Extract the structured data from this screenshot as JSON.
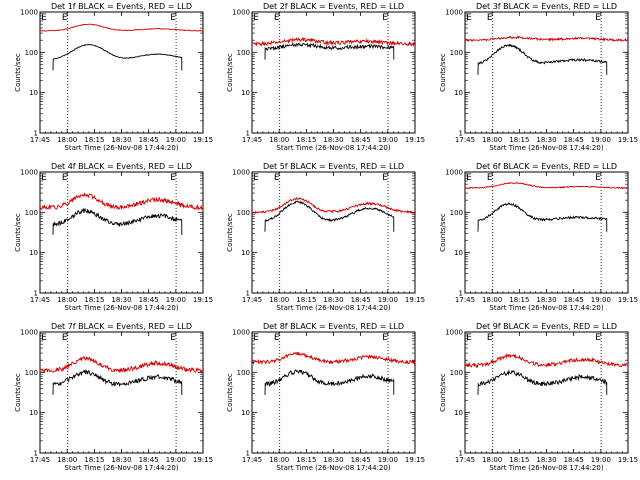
{
  "chart_data": [
    {
      "type": "line",
      "title": "Det 1f BLACK = Events, RED = LLD",
      "xlabel": "Start Time (26-Nov-08 17:44:20)",
      "ylabel": "Counts/sec",
      "yscale": "log",
      "ylim": [
        1,
        1000
      ],
      "x_ticks": [
        "17:45",
        "18:00",
        "18:15",
        "18:30",
        "18:45",
        "19:00",
        "19:15"
      ],
      "y_ticks": [
        "1",
        "10",
        "100",
        "1000"
      ],
      "marker_labels": [
        "E",
        "E"
      ],
      "series": [
        {
          "name": "LLD",
          "color": "#d40000",
          "profile": "flat",
          "base": 340,
          "amp": 170,
          "noise": 0.02,
          "t_start": 0.0,
          "t_end": 1.0
        },
        {
          "name": "Events",
          "color": "#000000",
          "profile": "flat",
          "base": 65,
          "amp": 100,
          "noise": 0.02,
          "t_start": 0.08,
          "t_end": 0.87
        }
      ]
    },
    {
      "type": "line",
      "title": "Det 2f BLACK = Events, RED = LLD",
      "xlabel": "Start Time (26-Nov-08 17:44:20)",
      "ylabel": "Counts/sec",
      "yscale": "log",
      "ylim": [
        1,
        1000
      ],
      "x_ticks": [
        "17:45",
        "18:00",
        "18:15",
        "18:30",
        "18:45",
        "19:00",
        "19:15"
      ],
      "y_ticks": [
        "1",
        "10",
        "100",
        "1000"
      ],
      "marker_labels": [
        "E",
        "E"
      ],
      "series": [
        {
          "name": "LLD",
          "color": "#d40000",
          "profile": "noisy",
          "base": 160,
          "amp": 80,
          "noise": 0.1,
          "t_start": 0.0,
          "t_end": 1.0
        },
        {
          "name": "Events",
          "color": "#000000",
          "profile": "noisy",
          "base": 120,
          "amp": 60,
          "noise": 0.1,
          "t_start": 0.08,
          "t_end": 0.87
        }
      ]
    },
    {
      "type": "line",
      "title": "Det 3f BLACK = Events, RED = LLD",
      "xlabel": "Start Time (26-Nov-08 17:44:20)",
      "ylabel": "Counts/sec",
      "yscale": "log",
      "ylim": [
        1,
        1000
      ],
      "x_ticks": [
        "17:45",
        "18:00",
        "18:15",
        "18:30",
        "18:45",
        "19:00",
        "19:15"
      ],
      "y_ticks": [
        "1",
        "10",
        "100",
        "1000"
      ],
      "marker_labels": [
        "E",
        "E"
      ],
      "series": [
        {
          "name": "LLD",
          "color": "#d40000",
          "profile": "noisy",
          "base": 200,
          "amp": 60,
          "noise": 0.06,
          "t_start": 0.0,
          "t_end": 1.0
        },
        {
          "name": "Events",
          "color": "#000000",
          "profile": "decay",
          "base": 50,
          "amp": 100,
          "noise": 0.06,
          "t_start": 0.08,
          "t_end": 0.87
        }
      ]
    },
    {
      "type": "line",
      "title": "Det 4f BLACK = Events, RED = LLD",
      "xlabel": "Start Time (26-Nov-08 17:44:20)",
      "ylabel": "Counts/sec",
      "yscale": "log",
      "ylim": [
        1,
        1000
      ],
      "x_ticks": [
        "17:45",
        "18:00",
        "18:15",
        "18:30",
        "18:45",
        "19:00",
        "19:15"
      ],
      "y_ticks": [
        "1",
        "10",
        "100",
        "1000"
      ],
      "marker_labels": [
        "E",
        "E"
      ],
      "series": [
        {
          "name": "LLD",
          "color": "#d40000",
          "profile": "double",
          "base": 130,
          "amp": 140,
          "noise": 0.12,
          "t_start": 0.0,
          "t_end": 1.0
        },
        {
          "name": "Events",
          "color": "#000000",
          "profile": "double",
          "base": 50,
          "amp": 60,
          "noise": 0.12,
          "t_start": 0.08,
          "t_end": 0.87
        }
      ]
    },
    {
      "type": "line",
      "title": "Det 5f BLACK = Events, RED = LLD",
      "xlabel": "Start Time (26-Nov-08 17:44:20)",
      "ylabel": "Counts/sec",
      "yscale": "log",
      "ylim": [
        1,
        1000
      ],
      "x_ticks": [
        "17:45",
        "18:00",
        "18:15",
        "18:30",
        "18:45",
        "19:00",
        "19:15"
      ],
      "y_ticks": [
        "1",
        "10",
        "100",
        "1000"
      ],
      "marker_labels": [
        "E",
        "E"
      ],
      "series": [
        {
          "name": "LLD",
          "color": "#d40000",
          "profile": "double",
          "base": 100,
          "amp": 120,
          "noise": 0.06,
          "t_start": 0.0,
          "t_end": 1.0
        },
        {
          "name": "Events",
          "color": "#000000",
          "profile": "double",
          "base": 60,
          "amp": 120,
          "noise": 0.06,
          "t_start": 0.08,
          "t_end": 0.87
        }
      ]
    },
    {
      "type": "line",
      "title": "Det 6f BLACK = Events, RED = LLD",
      "xlabel": "Start Time (26-Nov-08 17:44:20)",
      "ylabel": "Counts/sec",
      "yscale": "log",
      "ylim": [
        1,
        1000
      ],
      "x_ticks": [
        "17:45",
        "18:00",
        "18:15",
        "18:30",
        "18:45",
        "19:00",
        "19:15"
      ],
      "y_ticks": [
        "1",
        "10",
        "100",
        "1000"
      ],
      "marker_labels": [
        "E",
        "E"
      ],
      "series": [
        {
          "name": "LLD",
          "color": "#d40000",
          "profile": "flat",
          "base": 400,
          "amp": 150,
          "noise": 0.03,
          "t_start": 0.0,
          "t_end": 1.0
        },
        {
          "name": "Events",
          "color": "#000000",
          "profile": "decay",
          "base": 60,
          "amp": 100,
          "noise": 0.06,
          "t_start": 0.08,
          "t_end": 0.87
        }
      ]
    },
    {
      "type": "line",
      "title": "Det 7f BLACK = Events, RED = LLD",
      "xlabel": "Start Time (26-Nov-08 17:44:20)",
      "ylabel": "Counts/sec",
      "yscale": "log",
      "ylim": [
        1,
        1000
      ],
      "x_ticks": [
        "17:45",
        "18:00",
        "18:15",
        "18:30",
        "18:45",
        "19:00",
        "19:15"
      ],
      "y_ticks": [
        "1",
        "10",
        "100",
        "1000"
      ],
      "marker_labels": [
        "E",
        "E"
      ],
      "series": [
        {
          "name": "LLD",
          "color": "#d40000",
          "profile": "double",
          "base": 110,
          "amp": 110,
          "noise": 0.12,
          "t_start": 0.0,
          "t_end": 1.0
        },
        {
          "name": "Events",
          "color": "#000000",
          "profile": "double",
          "base": 50,
          "amp": 50,
          "noise": 0.12,
          "t_start": 0.08,
          "t_end": 0.87
        }
      ]
    },
    {
      "type": "line",
      "title": "Det 8f BLACK = Events, RED = LLD",
      "xlabel": "Start Time (26-Nov-08 17:44:20)",
      "ylabel": "Counts/sec",
      "yscale": "log",
      "ylim": [
        1,
        1000
      ],
      "x_ticks": [
        "17:45",
        "18:00",
        "18:15",
        "18:30",
        "18:45",
        "19:00",
        "19:15"
      ],
      "y_ticks": [
        "1",
        "10",
        "100",
        "1000"
      ],
      "marker_labels": [
        "E",
        "E"
      ],
      "series": [
        {
          "name": "LLD",
          "color": "#d40000",
          "profile": "double",
          "base": 180,
          "amp": 110,
          "noise": 0.1,
          "t_start": 0.0,
          "t_end": 1.0
        },
        {
          "name": "Events",
          "color": "#000000",
          "profile": "double",
          "base": 50,
          "amp": 55,
          "noise": 0.12,
          "t_start": 0.08,
          "t_end": 0.87
        }
      ]
    },
    {
      "type": "line",
      "title": "Det 9f BLACK = Events, RED = LLD",
      "xlabel": "Start Time (26-Nov-08 17:44:20)",
      "ylabel": "Counts/sec",
      "yscale": "log",
      "ylim": [
        1,
        1000
      ],
      "x_ticks": [
        "17:45",
        "18:00",
        "18:15",
        "18:30",
        "18:45",
        "19:00",
        "19:15"
      ],
      "y_ticks": [
        "1",
        "10",
        "100",
        "1000"
      ],
      "marker_labels": [
        "E",
        "E"
      ],
      "series": [
        {
          "name": "LLD",
          "color": "#d40000",
          "profile": "double",
          "base": 150,
          "amp": 110,
          "noise": 0.1,
          "t_start": 0.0,
          "t_end": 1.0
        },
        {
          "name": "Events",
          "color": "#000000",
          "profile": "double",
          "base": 50,
          "amp": 50,
          "noise": 0.12,
          "t_start": 0.08,
          "t_end": 0.87
        }
      ]
    }
  ]
}
